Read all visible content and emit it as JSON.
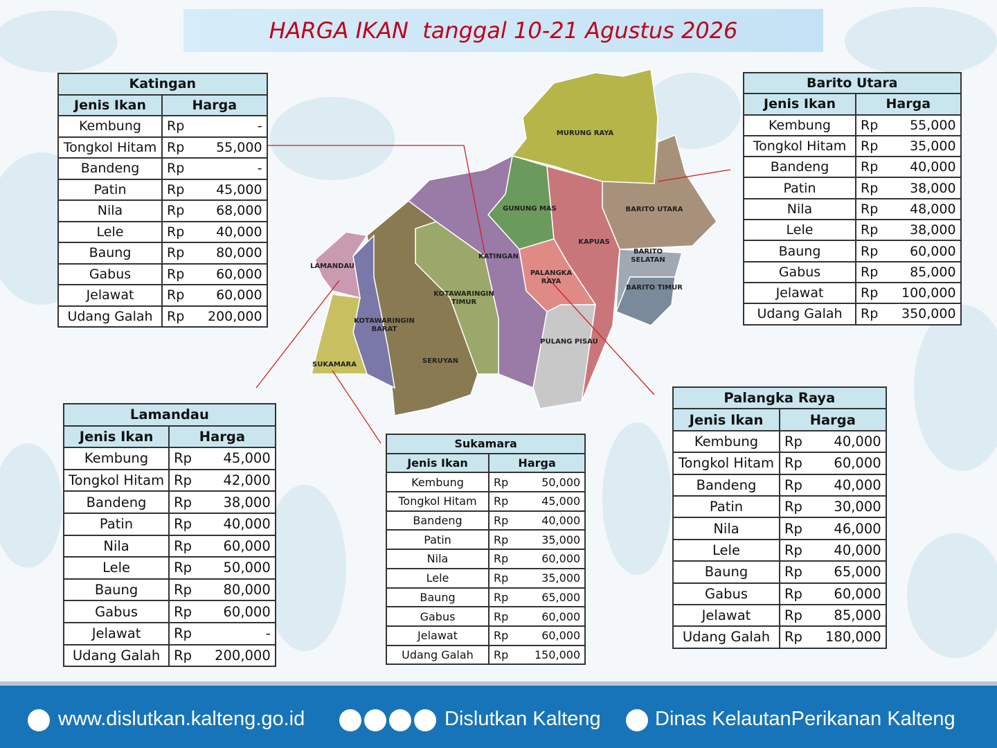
{
  "title": "HARGA IKAN  tanggal 10-21 Agustus 2026",
  "tables": [
    {
      "title": "Katingan",
      "headers": [
        "Jenis Ikan",
        "Harga"
      ],
      "rows": [
        [
          "Kembung",
          "Rp",
          "-"
        ],
        [
          "Tongkol Hitam",
          "Rp",
          "55,000"
        ],
        [
          "Bandeng",
          "Rp",
          "-"
        ],
        [
          "Patin",
          "Rp",
          "45,000"
        ],
        [
          "Nila",
          "Rp",
          "68,000"
        ],
        [
          "Lele",
          "Rp",
          "40,000"
        ],
        [
          "Baung",
          "Rp",
          "80,000"
        ],
        [
          "Gabus",
          "Rp",
          "60,000"
        ],
        [
          "Jelawat",
          "Rp",
          "60,000"
        ],
        [
          "Udang Galah",
          "Rp",
          "200,000"
        ]
      ]
    },
    {
      "title": "Barito Utara",
      "headers": [
        "Jenis Ikan",
        "Harga"
      ],
      "rows": [
        [
          "Kembung",
          "Rp",
          "55,000"
        ],
        [
          "Tongkol Hitam",
          "Rp",
          "35,000"
        ],
        [
          "Bandeng",
          "Rp",
          "40,000"
        ],
        [
          "Patin",
          "Rp",
          "38,000"
        ],
        [
          "Nila",
          "Rp",
          "48,000"
        ],
        [
          "Lele",
          "Rp",
          "38,000"
        ],
        [
          "Baung",
          "Rp",
          "60,000"
        ],
        [
          "Gabus",
          "Rp",
          "85,000"
        ],
        [
          "Jelawat",
          "Rp",
          "100,000"
        ],
        [
          "Udang Galah",
          "Rp",
          "350,000"
        ]
      ]
    },
    {
      "title": "Lamandau",
      "headers": [
        "Jenis Ikan",
        "Harga"
      ],
      "rows": [
        [
          "Kembung",
          "Rp",
          "45,000"
        ],
        [
          "Tongkol Hitam",
          "Rp",
          "42,000"
        ],
        [
          "Bandeng",
          "Rp",
          "38,000"
        ],
        [
          "Patin",
          "Rp",
          "40,000"
        ],
        [
          "Nila",
          "Rp",
          "60,000"
        ],
        [
          "Lele",
          "Rp",
          "50,000"
        ],
        [
          "Baung",
          "Rp",
          "80,000"
        ],
        [
          "Gabus",
          "Rp",
          "60,000"
        ],
        [
          "Jelawat",
          "Rp",
          "-"
        ],
        [
          "Udang Galah",
          "Rp",
          "200,000"
        ]
      ]
    },
    {
      "title": "Sukamara",
      "headers": [
        "Jenis Ikan",
        "Harga"
      ],
      "rows": [
        [
          "Kembung",
          "Rp",
          "50,000"
        ],
        [
          "Tongkol Hitam",
          "Rp",
          "45,000"
        ],
        [
          "Bandeng",
          "Rp",
          "40,000"
        ],
        [
          "Patin",
          "Rp",
          "35,000"
        ],
        [
          "Nila",
          "Rp",
          "60,000"
        ],
        [
          "Lele",
          "Rp",
          "35,000"
        ],
        [
          "Baung",
          "Rp",
          "65,000"
        ],
        [
          "Gabus",
          "Rp",
          "60,000"
        ],
        [
          "Jelawat",
          "Rp",
          "60,000"
        ],
        [
          "Udang Galah",
          "Rp",
          "150,000"
        ]
      ]
    },
    {
      "title": "Palangka Raya",
      "headers": [
        "Jenis Ikan",
        "Harga"
      ],
      "rows": [
        [
          "Kembung",
          "Rp",
          "40,000"
        ],
        [
          "Tongkol Hitam",
          "Rp",
          "60,000"
        ],
        [
          "Bandeng",
          "Rp",
          "40,000"
        ],
        [
          "Patin",
          "Rp",
          "30,000"
        ],
        [
          "Nila",
          "Rp",
          "46,000"
        ],
        [
          "Lele",
          "Rp",
          "40,000"
        ],
        [
          "Baung",
          "Rp",
          "65,000"
        ],
        [
          "Gabus",
          "Rp",
          "60,000"
        ],
        [
          "Jelawat",
          "Rp",
          "85,000"
        ],
        [
          "Udang Galah",
          "Rp",
          "180,000"
        ]
      ]
    }
  ],
  "map": {
    "regions": [
      "MURUNG RAYA",
      "GUNUNG MAS",
      "BARITO UTARA",
      "KAPUAS",
      "KATINGAN",
      "PALANGKA RAYA",
      "BARITO SELATAN",
      "BARITO TIMUR",
      "LAMANDAU",
      "KOTAWARINGIN TIMUR",
      "KOTAWARINGIN BARAT",
      "PULANG PISAU",
      "SERUYAN",
      "SUKAMARA"
    ]
  },
  "footer": {
    "website": "www.dislutkan.kalteng.go.id",
    "social": "Dislutkan Kalteng",
    "facebook": "Dinas KelautanPerikanan Kalteng"
  }
}
